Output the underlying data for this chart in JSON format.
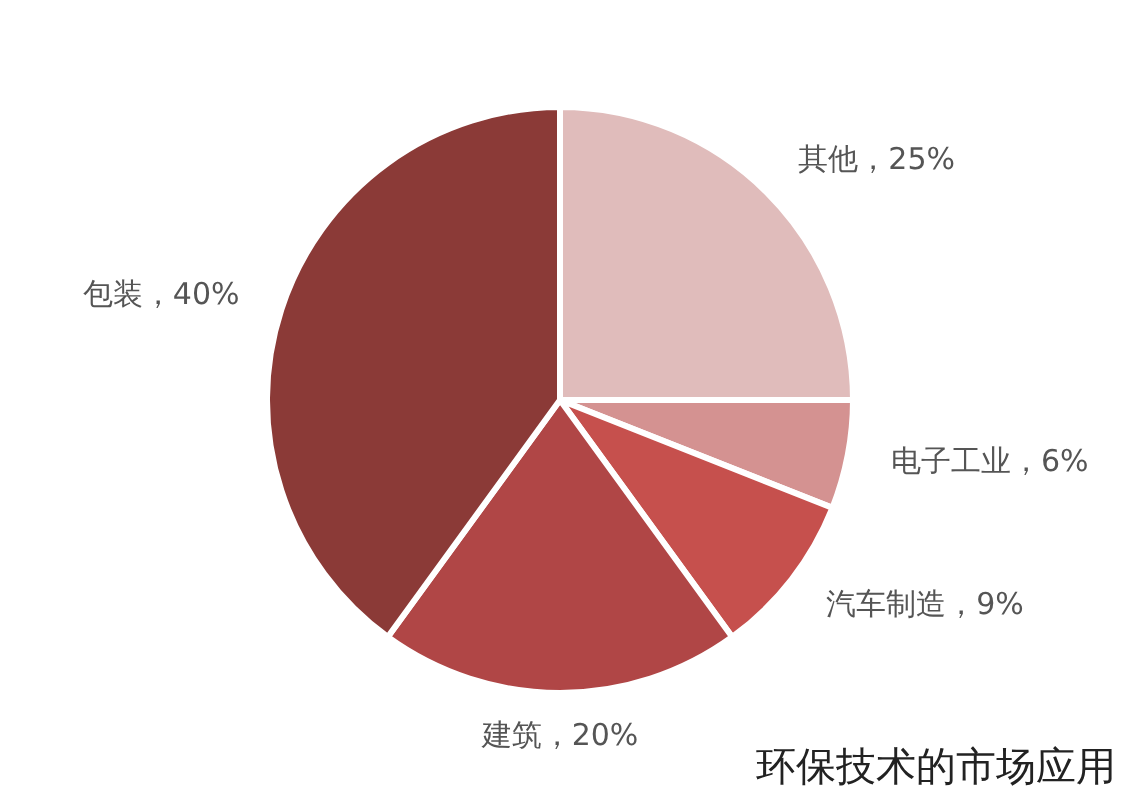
{
  "chart_data": {
    "type": "pie",
    "title": "环保技术的市场应用",
    "categories": [
      "其他",
      "电子工业",
      "汽车制造",
      "建筑",
      "包装"
    ],
    "values": [
      25,
      6,
      9,
      20,
      40
    ],
    "value_labels": [
      "25%",
      "6%",
      "9%",
      "20%",
      "40%"
    ],
    "colors": [
      "#e0bcbb",
      "#d49291",
      "#c6504d",
      "#b04646",
      "#8b3a37"
    ],
    "legend": false
  }
}
